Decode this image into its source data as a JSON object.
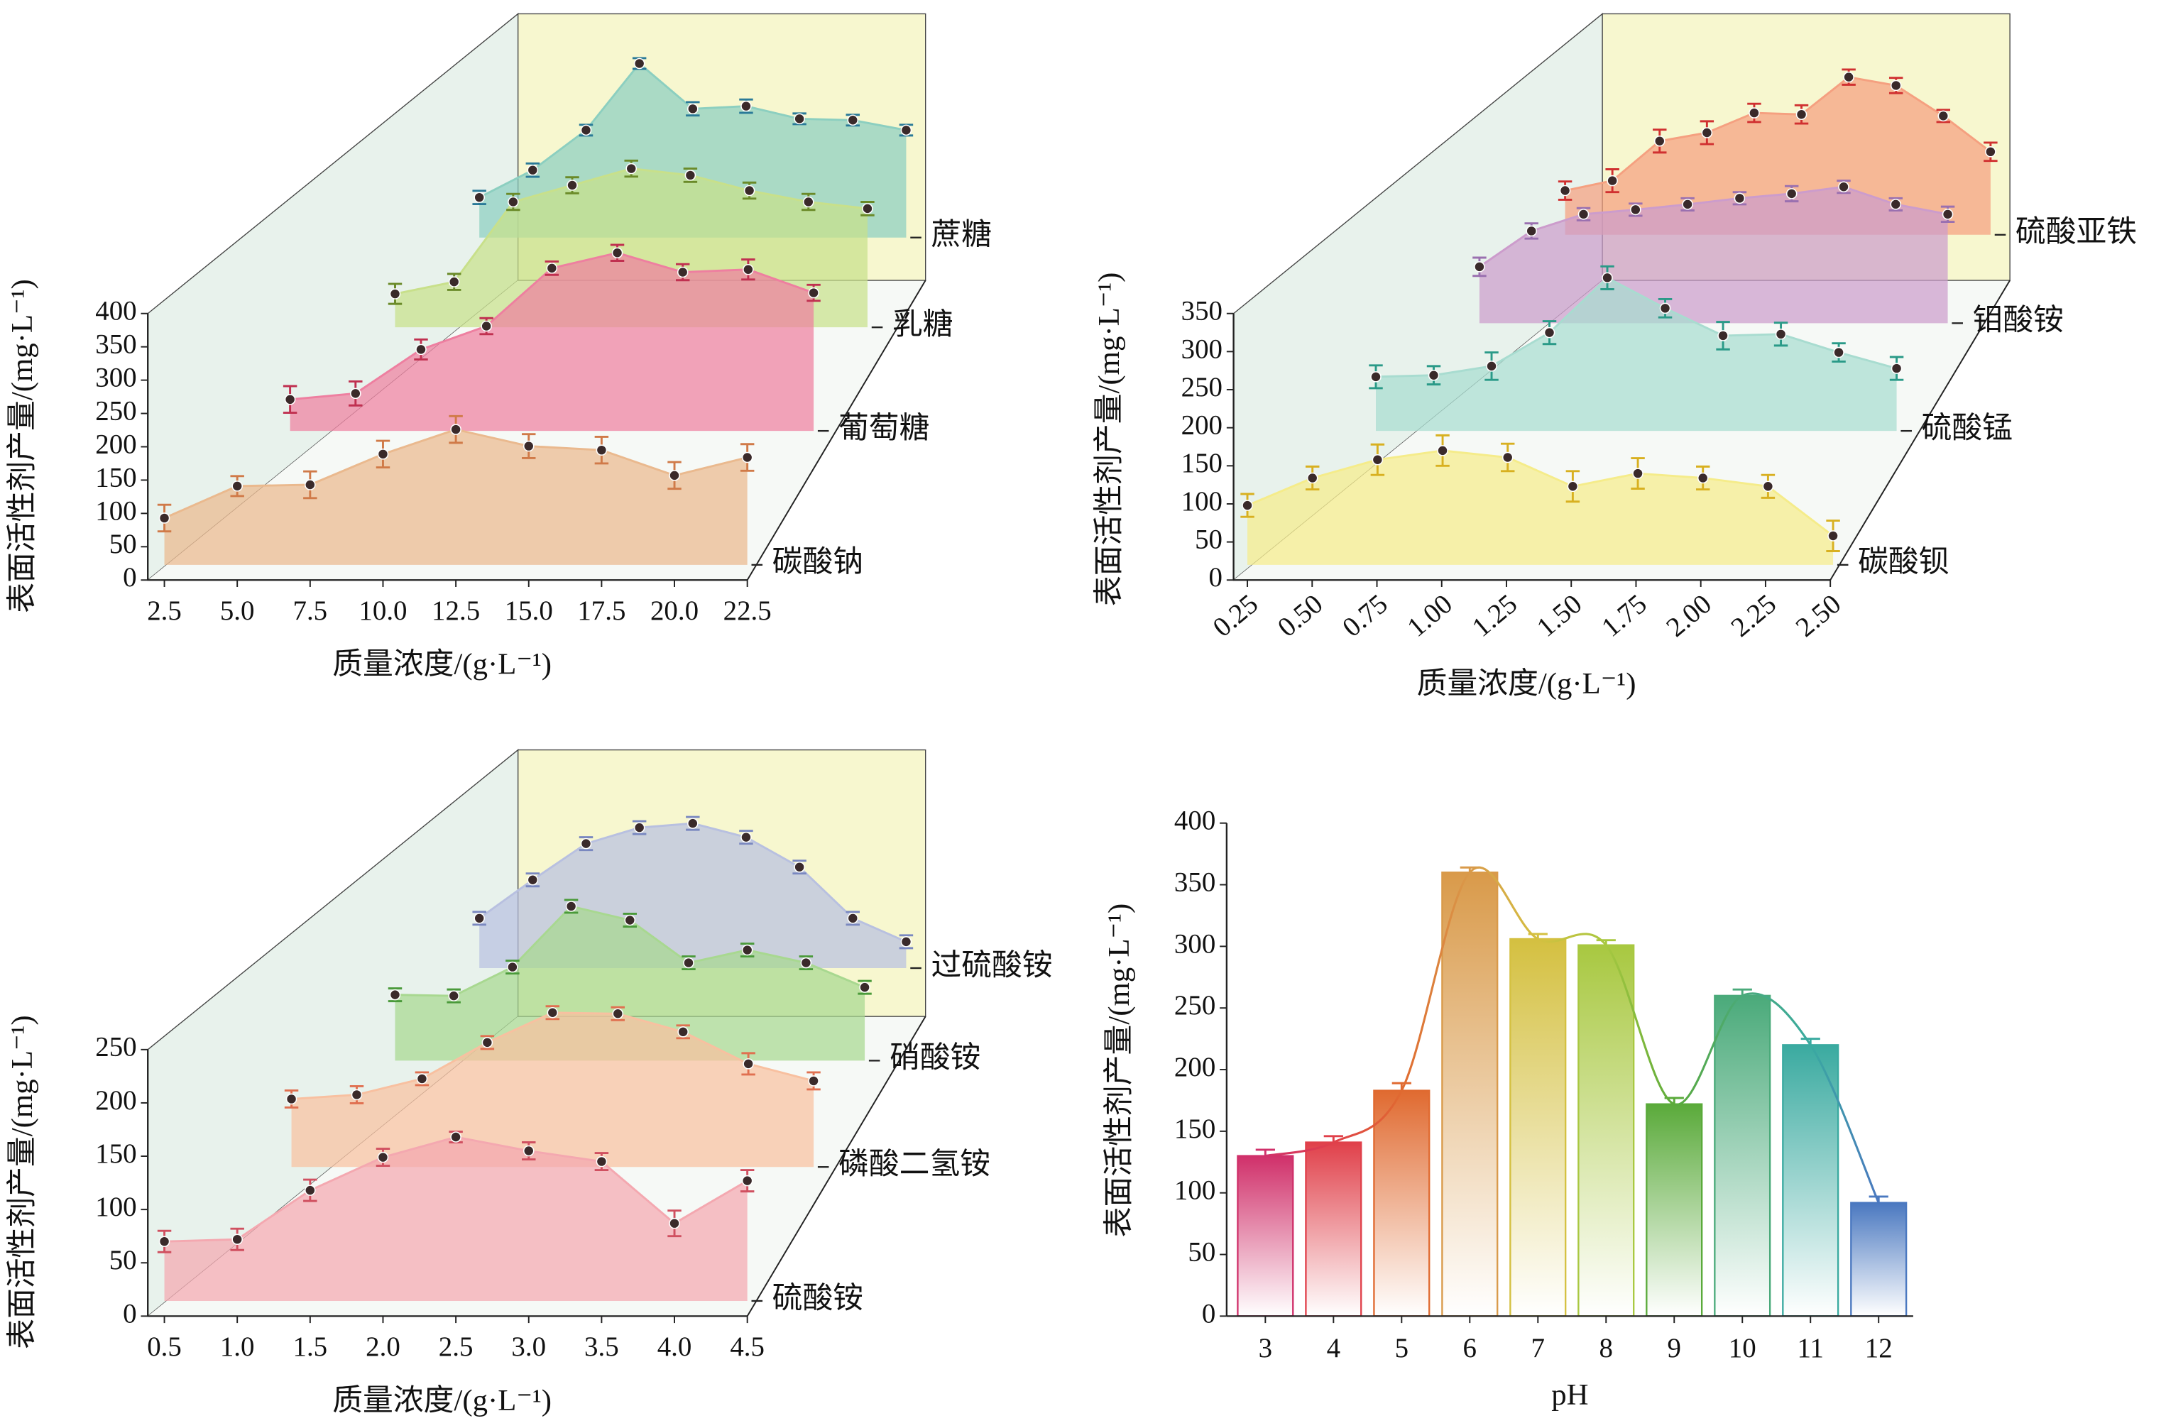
{
  "chart_data": [
    {
      "type": "area",
      "x": [
        2.5,
        5,
        7.5,
        10,
        12.5,
        15,
        17.5,
        20,
        22.5
      ],
      "xlim": [
        2.5,
        22.5
      ],
      "xticks": [
        2.5,
        {
          "value": 5,
          "label": "5.0"
        },
        7.5,
        {
          "value": 10,
          "label": "10.0"
        },
        12.5,
        {
          "value": 15,
          "label": "15.0"
        },
        17.5,
        {
          "value": 20,
          "label": "20.0"
        },
        22.5
      ],
      "ylim": [
        0,
        400
      ],
      "yticks": [
        0,
        50,
        100,
        150,
        200,
        250,
        300,
        350,
        400
      ],
      "x_label": "质量浓度/(g·L⁻¹)",
      "y_label": "表面活性剂产量/(mg·L⁻¹)",
      "series": [
        {
          "name": "碳酸钠",
          "color": "#eab98e",
          "error_color": "#d07a48",
          "values": [
            93,
            141,
            143,
            189,
            226,
            201,
            195,
            157,
            184
          ],
          "errors": [
            20,
            15,
            20,
            20,
            20,
            18,
            20,
            20,
            20
          ]
        },
        {
          "name": "葡萄糖",
          "color": "#ee7fa0",
          "error_color": "#c03050",
          "values": [
            70,
            79,
            145,
            180,
            267,
            290,
            261,
            265,
            230
          ],
          "errors": [
            20,
            18,
            15,
            12,
            10,
            12,
            12,
            15,
            12
          ]
        },
        {
          "name": "乳糖",
          "color": "#c8e08a",
          "error_color": "#6a8a28",
          "values": [
            73,
            91,
            211,
            236,
            261,
            251,
            228,
            211,
            201
          ],
          "errors": [
            15,
            12,
            12,
            12,
            12,
            10,
            12,
            12,
            10
          ]
        },
        {
          "name": "蔗糖",
          "color": "#8ccfc0",
          "error_color": "#2a7a98",
          "values": [
            83,
            124,
            184,
            284,
            216,
            220,
            201,
            199,
            184
          ],
          "errors": [
            10,
            10,
            8,
            8,
            10,
            10,
            8,
            8,
            8
          ]
        }
      ]
    },
    {
      "type": "area",
      "x": [
        0.25,
        0.5,
        0.75,
        1,
        1.25,
        1.5,
        1.75,
        2,
        2.25,
        2.5
      ],
      "xlim": [
        0.25,
        2.5
      ],
      "xticks": [
        0.25,
        {
          "value": 0.5,
          "label": "0.50"
        },
        0.75,
        {
          "value": 1,
          "label": "1.00"
        },
        1.25,
        {
          "value": 1.5,
          "label": "1.50"
        },
        1.75,
        {
          "value": 2,
          "label": "2.00"
        },
        2.25,
        {
          "value": 2.5,
          "label": "2.50"
        }
      ],
      "ylim": [
        0,
        350
      ],
      "yticks": [
        0,
        50,
        100,
        150,
        200,
        250,
        300,
        350
      ],
      "x_label": "质量浓度/(g·L⁻¹)",
      "y_label": "表面活性剂产量/(mg·L⁻¹)",
      "series": [
        {
          "name": "碳酸钡",
          "color": "#f5ec8a",
          "error_color": "#d8b020",
          "values": [
            98,
            134,
            158,
            170,
            161,
            123,
            140,
            134,
            123,
            58
          ],
          "errors": [
            15,
            15,
            20,
            20,
            18,
            20,
            20,
            15,
            15,
            20
          ]
        },
        {
          "name": "硫酸锰",
          "color": "#a8dcd0",
          "error_color": "#2a9a88",
          "values": [
            91,
            93,
            105,
            149,
            221,
            181,
            145,
            147,
            123,
            102
          ],
          "errors": [
            15,
            12,
            18,
            15,
            15,
            12,
            18,
            15,
            12,
            15
          ]
        },
        {
          "name": "钼酸铵",
          "color": "#cc9ccc",
          "error_color": "#9a70b0",
          "values": [
            94,
            141,
            163,
            169,
            176,
            184,
            190,
            199,
            176,
            163
          ],
          "errors": [
            12,
            10,
            8,
            8,
            8,
            8,
            10,
            8,
            8,
            10
          ]
        },
        {
          "name": "硫酸亚铁",
          "color": "#f5a080",
          "error_color": "#d03030",
          "values": [
            78,
            91,
            143,
            154,
            180,
            178,
            227,
            216,
            176,
            129
          ],
          "errors": [
            12,
            15,
            15,
            15,
            12,
            12,
            10,
            10,
            8,
            12
          ]
        }
      ]
    },
    {
      "type": "area",
      "x": [
        0.5,
        1,
        1.5,
        2,
        2.5,
        3,
        3.5,
        4,
        4.5
      ],
      "xlim": [
        0.5,
        4.5
      ],
      "xticks": [
        0.5,
        {
          "value": 1,
          "label": "1.0"
        },
        1.5,
        {
          "value": 2,
          "label": "2.0"
        },
        2.5,
        {
          "value": 3,
          "label": "3.0"
        },
        3.5,
        {
          "value": 4,
          "label": "4.0"
        },
        4.5
      ],
      "ylim": [
        0,
        250
      ],
      "yticks": [
        0,
        50,
        100,
        150,
        200,
        250
      ],
      "x_label": "质量浓度/(g·L⁻¹)",
      "y_label": "表面活性剂产量/(mg·L⁻¹)",
      "series": [
        {
          "name": "硫酸铵",
          "color": "#f4a8b0",
          "error_color": "#d05060",
          "values": [
            70,
            72,
            118,
            149,
            168,
            155,
            145,
            87,
            127
          ],
          "errors": [
            10,
            10,
            10,
            8,
            5,
            8,
            8,
            12,
            10
          ]
        },
        {
          "name": "磷酸二氢铵",
          "color": "#f8c0a0",
          "error_color": "#e07050",
          "values": [
            78,
            82,
            97,
            131,
            159,
            158,
            141,
            111,
            95
          ],
          "errors": [
            8,
            8,
            6,
            6,
            6,
            6,
            6,
            10,
            8
          ]
        },
        {
          "name": "硝酸铵",
          "color": "#a8d890",
          "error_color": "#4a9a3a",
          "values": [
            76,
            75,
            102,
            159,
            146,
            106,
            118,
            106,
            83
          ],
          "errors": [
            6,
            6,
            6,
            6,
            6,
            6,
            6,
            6,
            6
          ]
        },
        {
          "name": "过硫酸铵",
          "color": "#b8c0e0",
          "error_color": "#7a88c0",
          "values": [
            61,
            97,
            131,
            146,
            150,
            137,
            109,
            61,
            39
          ],
          "errors": [
            6,
            6,
            6,
            6,
            6,
            6,
            6,
            6,
            6
          ]
        }
      ]
    },
    {
      "type": "bar",
      "categories": [
        "3",
        "4",
        "5",
        "6",
        "7",
        "8",
        "9",
        "10",
        "11",
        "12"
      ],
      "values": [
        130,
        141,
        183,
        360,
        306,
        301,
        172,
        260,
        220,
        92
      ],
      "errors": [
        5,
        5,
        6,
        4,
        4,
        4,
        5,
        5,
        5,
        5
      ],
      "colors": [
        "#d0306a",
        "#e0404a",
        "#e06a30",
        "#d99a4a",
        "#d4c040",
        "#a8c840",
        "#5aaa3a",
        "#4aaa7a",
        "#3aaaa0",
        "#4a78c0"
      ],
      "ylim": [
        0,
        400
      ],
      "yticks": [
        0,
        50,
        100,
        150,
        200,
        250,
        300,
        350,
        400
      ],
      "x_label": "pH",
      "y_label": "表面活性剂产量/(mg·L⁻¹)"
    }
  ]
}
